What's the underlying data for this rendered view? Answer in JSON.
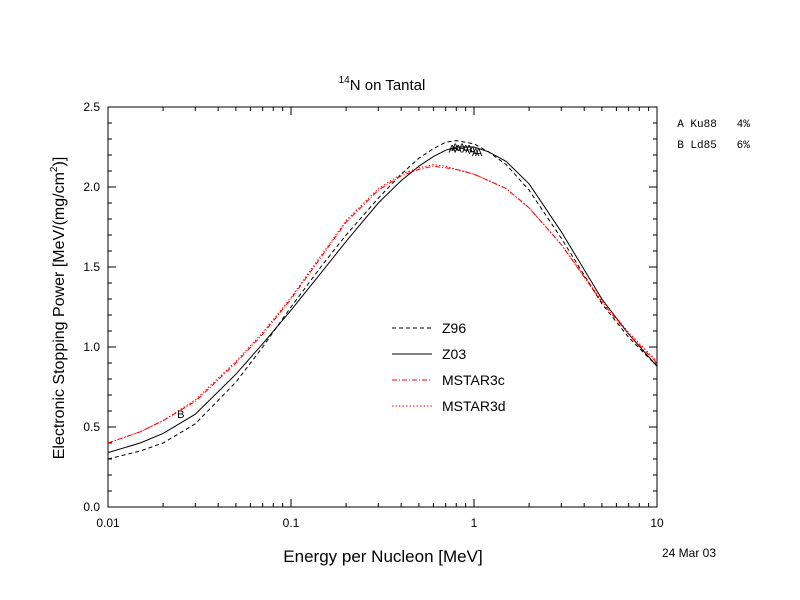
{
  "chart_data": {
    "type": "line",
    "title_superscript": "14",
    "title_text": "N on Tantal",
    "xlabel": "Energy per Nucleon [MeV]",
    "ylabel_main": "Electronic Stopping Power [MeV/(mg/cm",
    "ylabel_sup": "2",
    "ylabel_end": ")]",
    "xscale": "log",
    "xlim": [
      0.01,
      10
    ],
    "ylim": [
      0,
      2.5
    ],
    "x_ticks": [
      0.01,
      0.1,
      1,
      10
    ],
    "x_tick_labels": [
      "0.01",
      "0.1",
      "1",
      "10"
    ],
    "y_ticks": [
      0,
      0.5,
      1.0,
      1.5,
      2.0,
      2.5
    ],
    "y_tick_labels": [
      "0.0",
      "0.5",
      "1.0",
      "1.5",
      "2.0",
      "2.5"
    ],
    "grid": false,
    "legend_position": "center",
    "series": [
      {
        "name": "Z96",
        "color": "#000000",
        "dash": "dashed",
        "x": [
          0.01,
          0.015,
          0.02,
          0.03,
          0.05,
          0.07,
          0.1,
          0.15,
          0.2,
          0.3,
          0.4,
          0.5,
          0.6,
          0.7,
          0.8,
          1.0,
          1.2,
          1.5,
          2.0,
          3.0,
          5.0,
          7.0,
          10.0
        ],
        "y": [
          0.3,
          0.35,
          0.4,
          0.52,
          0.78,
          1.0,
          1.25,
          1.52,
          1.7,
          1.93,
          2.08,
          2.18,
          2.24,
          2.28,
          2.29,
          2.27,
          2.22,
          2.14,
          1.98,
          1.68,
          1.27,
          1.06,
          0.88
        ]
      },
      {
        "name": "Z03",
        "color": "#000000",
        "dash": "solid",
        "x": [
          0.01,
          0.015,
          0.02,
          0.03,
          0.05,
          0.07,
          0.1,
          0.15,
          0.2,
          0.3,
          0.4,
          0.5,
          0.6,
          0.7,
          0.8,
          1.0,
          1.2,
          1.5,
          2.0,
          3.0,
          5.0,
          7.0,
          10.0
        ],
        "y": [
          0.34,
          0.4,
          0.46,
          0.58,
          0.83,
          1.02,
          1.23,
          1.48,
          1.66,
          1.9,
          2.04,
          2.13,
          2.19,
          2.23,
          2.25,
          2.25,
          2.22,
          2.16,
          2.02,
          1.72,
          1.3,
          1.08,
          0.88
        ]
      },
      {
        "name": "MSTAR3c",
        "color": "#ff0000",
        "dash": "dashdot",
        "x": [
          0.01,
          0.015,
          0.02,
          0.03,
          0.05,
          0.07,
          0.1,
          0.15,
          0.2,
          0.3,
          0.4,
          0.5,
          0.6,
          0.7,
          0.8,
          1.0,
          1.2,
          1.5,
          2.0,
          3.0,
          5.0,
          7.0,
          10.0
        ],
        "y": [
          0.4,
          0.47,
          0.54,
          0.66,
          0.9,
          1.08,
          1.3,
          1.58,
          1.78,
          1.98,
          2.07,
          2.11,
          2.13,
          2.12,
          2.11,
          2.08,
          2.04,
          1.99,
          1.87,
          1.64,
          1.28,
          1.08,
          0.9
        ]
      },
      {
        "name": "MSTAR3d",
        "color": "#ff0000",
        "dash": "dotted",
        "x": [
          0.01,
          0.015,
          0.02,
          0.03,
          0.05,
          0.07,
          0.1,
          0.15,
          0.2,
          0.3,
          0.4,
          0.5,
          0.6,
          0.7,
          0.8,
          1.0,
          1.2,
          1.5,
          2.0,
          3.0,
          5.0,
          7.0,
          10.0
        ],
        "y": [
          0.4,
          0.47,
          0.54,
          0.67,
          0.91,
          1.09,
          1.31,
          1.59,
          1.79,
          1.99,
          2.08,
          2.12,
          2.14,
          2.13,
          2.11,
          2.08,
          2.04,
          1.99,
          1.87,
          1.64,
          1.29,
          1.09,
          0.91
        ]
      }
    ],
    "data_points": [
      {
        "label": "A",
        "x": 0.76,
        "y": 2.24
      },
      {
        "label": "A",
        "x": 0.79,
        "y": 2.25
      },
      {
        "label": "A",
        "x": 0.82,
        "y": 2.24
      },
      {
        "label": "A",
        "x": 0.86,
        "y": 2.25
      },
      {
        "label": "A",
        "x": 0.9,
        "y": 2.24
      },
      {
        "label": "A",
        "x": 0.94,
        "y": 2.24
      },
      {
        "label": "A",
        "x": 0.98,
        "y": 2.23
      },
      {
        "label": "A",
        "x": 1.02,
        "y": 2.22
      },
      {
        "label": "A",
        "x": 1.06,
        "y": 2.22
      },
      {
        "label": "B",
        "x": 0.025,
        "y": 0.58
      }
    ],
    "references": [
      {
        "letter": "A",
        "code": "Ku88",
        "error": "4%"
      },
      {
        "letter": "B",
        "code": "Ld85",
        "error": "6%"
      }
    ],
    "date": "24 Mar 03"
  }
}
